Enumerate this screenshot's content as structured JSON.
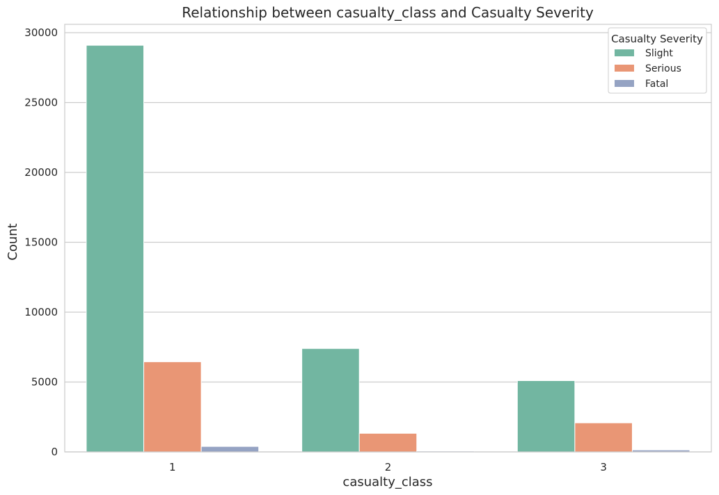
{
  "chart_data": {
    "type": "bar",
    "title": "Relationship between casualty_class and Casualty Severity",
    "xlabel": "casualty_class",
    "ylabel": "Count",
    "categories": [
      "1",
      "2",
      "3"
    ],
    "ylim": [
      0,
      30600
    ],
    "yticks": [
      0,
      5000,
      10000,
      15000,
      20000,
      25000,
      30000
    ],
    "grid": true,
    "legend": {
      "title": "Casualty Severity",
      "placement": "top-right"
    },
    "series": [
      {
        "name": "Slight",
        "color": "#72b6a1",
        "values": [
          29100,
          7400,
          5100
        ]
      },
      {
        "name": "Serious",
        "color": "#e99675",
        "values": [
          6450,
          1330,
          2080
        ]
      },
      {
        "name": "Fatal",
        "color": "#95a3c3",
        "values": [
          390,
          60,
          140
        ]
      }
    ]
  }
}
